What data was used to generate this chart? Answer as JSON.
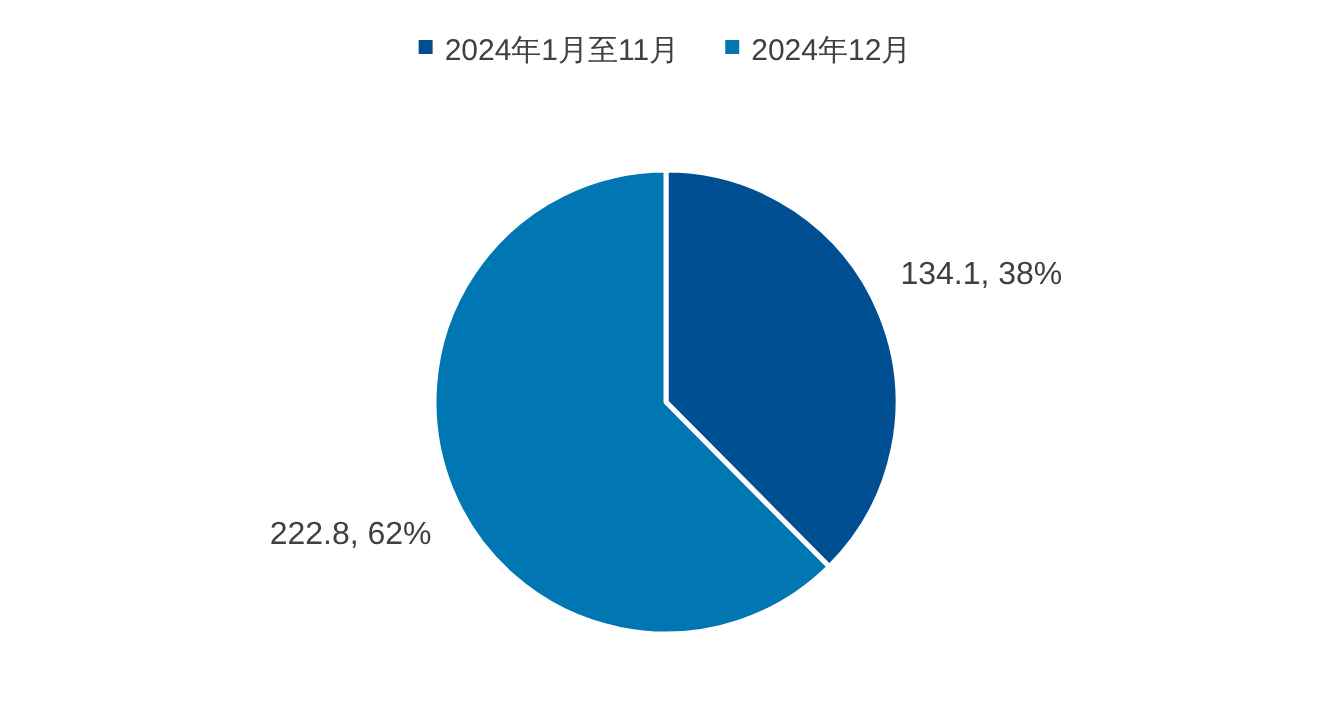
{
  "chart_data": {
    "type": "pie",
    "categories": [
      "2024年1月至11月",
      "2024年12月"
    ],
    "values": [
      134.1,
      222.8
    ],
    "colors": [
      "#004f93",
      "#0077b3"
    ],
    "value_labels": [
      "134.1, 38%",
      "222.8, 62%"
    ],
    "legend": "top"
  }
}
